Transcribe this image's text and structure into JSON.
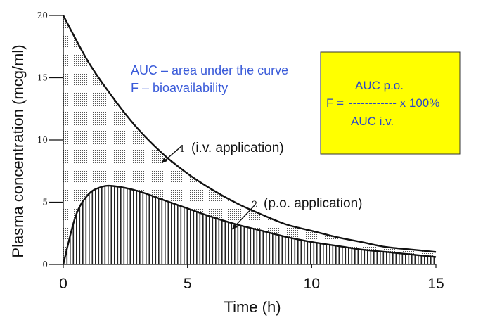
{
  "chart_data": {
    "type": "area",
    "xlabel": "Time (h)",
    "ylabel": "Plasma concentration (mcg/ml)",
    "xlim": [
      0,
      15
    ],
    "ylim": [
      0,
      20
    ],
    "x_ticks": [
      "0",
      "5",
      "10",
      "15"
    ],
    "y_ticks": [
      "0",
      "5",
      "10",
      "15",
      "20"
    ],
    "grid": false,
    "series": [
      {
        "name": "(i.v. application)",
        "number": "1",
        "fill": "dotted",
        "x": [
          0,
          1,
          2,
          3,
          4,
          5,
          6,
          7,
          8,
          9,
          10,
          11,
          12,
          13,
          14,
          15
        ],
        "values": [
          20.0,
          16.3,
          13.4,
          10.9,
          8.9,
          7.3,
          6.0,
          4.9,
          4.0,
          3.2,
          2.7,
          2.2,
          1.8,
          1.4,
          1.2,
          1.0
        ]
      },
      {
        "name": "(p.o. application)",
        "number": "2",
        "fill": "vertical-hatch",
        "x": [
          0,
          0.5,
          1,
          1.5,
          2,
          3,
          4,
          5,
          6,
          7,
          8,
          9,
          10,
          11,
          12,
          13,
          14,
          15
        ],
        "values": [
          0.0,
          3.9,
          5.6,
          6.2,
          6.3,
          5.9,
          5.2,
          4.5,
          3.8,
          3.2,
          2.7,
          2.2,
          1.8,
          1.5,
          1.2,
          1.0,
          0.8,
          0.6
        ]
      }
    ]
  },
  "notes": {
    "line1": "AUC – area under the curve",
    "line2": "F – bioavailability",
    "color": "#3a5bd9"
  },
  "formula_box": {
    "numerator": "AUC p.o.",
    "lhs": "F =",
    "fraction_line": "------------ x 100%",
    "denominator": "AUC i.v.",
    "background": "#ffff00",
    "text_color": "#2b47c9"
  }
}
